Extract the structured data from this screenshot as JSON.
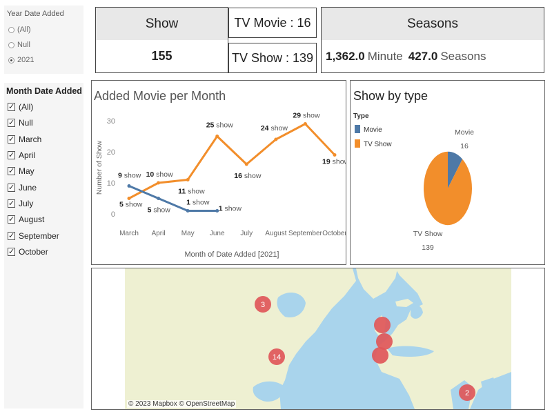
{
  "filters": {
    "year": {
      "title": "Year Date Added",
      "options": [
        {
          "label": "(All)",
          "selected": false
        },
        {
          "label": "Null",
          "selected": false
        },
        {
          "label": "2021",
          "selected": true
        }
      ]
    },
    "month": {
      "title": "Month Date Added",
      "options": [
        {
          "label": "(All)",
          "checked": true
        },
        {
          "label": "Null",
          "checked": true
        },
        {
          "label": "March",
          "checked": true
        },
        {
          "label": "April",
          "checked": true
        },
        {
          "label": "May",
          "checked": true
        },
        {
          "label": "June",
          "checked": true
        },
        {
          "label": "July",
          "checked": true
        },
        {
          "label": "August",
          "checked": true
        },
        {
          "label": "September",
          "checked": true
        },
        {
          "label": "October",
          "checked": true
        }
      ]
    }
  },
  "kpis": {
    "show_header": "Show",
    "show_value": "155",
    "tv_movie": "TV Movie : 16",
    "tv_show": "TV Show : 139",
    "seasons_header": "Seasons",
    "minutes_value": "1,362.0",
    "minutes_unit": "Minute",
    "seasons_value": "427.0",
    "seasons_unit": "Seasons"
  },
  "colors": {
    "movie": "#4e79a7",
    "tv_show": "#f28e2b",
    "map_marker": "#e05759",
    "land": "#eef0d2",
    "water": "#a9d4ec"
  },
  "chart_data": [
    {
      "type": "line",
      "title": "Added Movie per Month",
      "xlabel": "Month of Date Added [2021]",
      "ylabel": "Number of Show",
      "categories": [
        "March",
        "April",
        "May",
        "June",
        "July",
        "August",
        "September",
        "October"
      ],
      "ylim": [
        0,
        30
      ],
      "yticks": [
        0,
        10,
        20,
        30
      ],
      "grid": false,
      "label_suffix": "show",
      "series": [
        {
          "name": "TV Show",
          "color": "#f28e2b",
          "values": [
            5,
            10,
            11,
            25,
            16,
            24,
            29,
            19
          ]
        },
        {
          "name": "Movie",
          "color": "#4e79a7",
          "values": [
            9,
            5,
            1,
            1,
            null,
            null,
            null,
            null
          ]
        }
      ]
    },
    {
      "type": "pie",
      "title": "Show by type",
      "legend_title": "Type",
      "legend_position": "top-left",
      "slices": [
        {
          "label": "Movie",
          "value": 16,
          "color": "#4e79a7"
        },
        {
          "label": "TV Show",
          "value": 139,
          "color": "#f28e2b"
        }
      ]
    }
  ],
  "map": {
    "credit": "© 2023 Mapbox © OpenStreetMap",
    "markers": [
      {
        "label": "3"
      },
      {
        "label": "14"
      },
      {
        "label": ""
      },
      {
        "label": ""
      },
      {
        "label": ""
      },
      {
        "label": "2"
      }
    ]
  }
}
